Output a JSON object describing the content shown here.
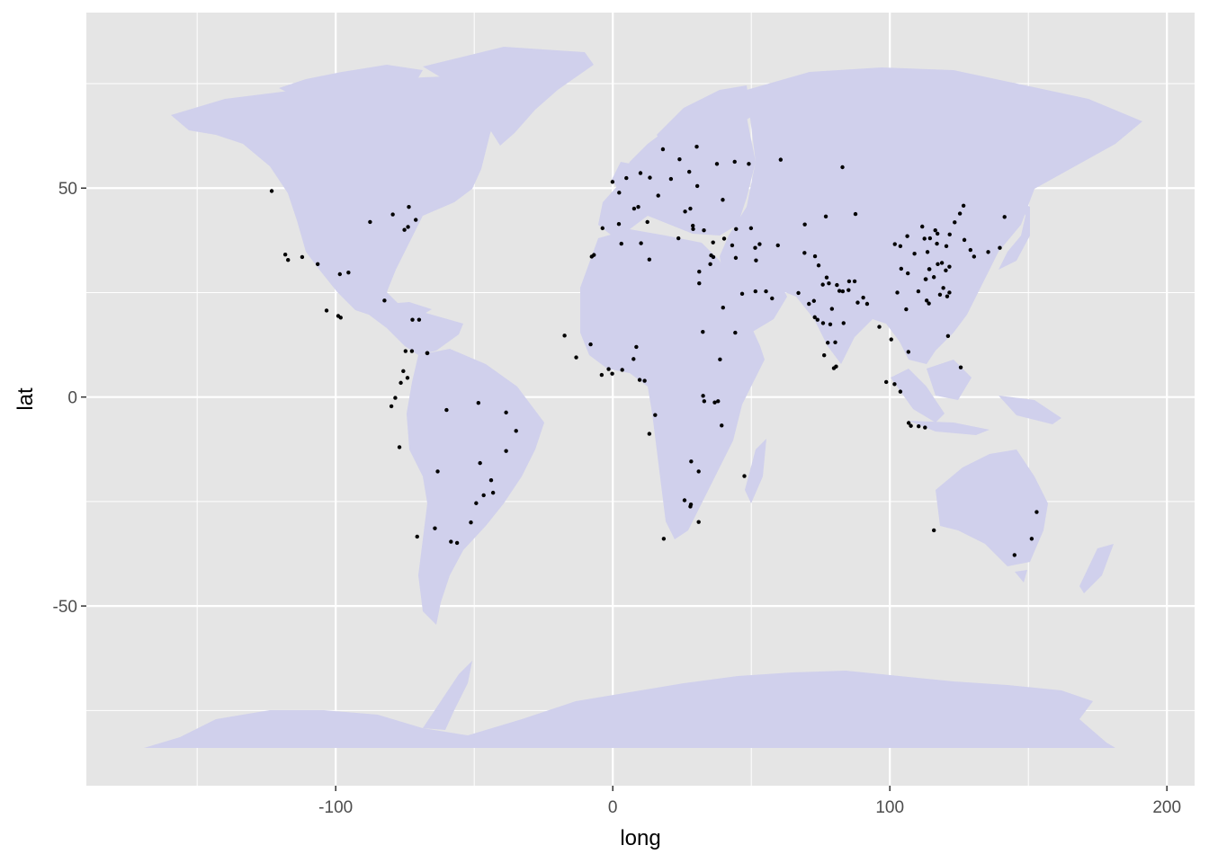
{
  "chart_data": {
    "type": "scatter",
    "xlabel": "long",
    "ylabel": "lat",
    "xlim": [
      -190,
      210
    ],
    "ylim": [
      -93,
      92
    ],
    "x_ticks": [
      -100,
      0,
      100,
      200
    ],
    "y_ticks": [
      -50,
      0,
      50
    ],
    "x_tick_labels": [
      "-100",
      "0",
      "100",
      "200"
    ],
    "y_tick_labels": [
      "-50",
      "0",
      "50"
    ],
    "grid": true,
    "colors": {
      "panel": "#e5e5e5",
      "grid": "#ffffff",
      "land": "#d0d0ec",
      "points": "#000000"
    },
    "points": [
      [
        -123.1,
        49.3
      ],
      [
        -118.2,
        34.1
      ],
      [
        -117.2,
        32.8
      ],
      [
        -112.1,
        33.5
      ],
      [
        -106.5,
        31.8
      ],
      [
        -98.5,
        29.4
      ],
      [
        -95.4,
        29.8
      ],
      [
        -87.6,
        41.9
      ],
      [
        -79.4,
        43.7
      ],
      [
        -73.9,
        40.7
      ],
      [
        -75.2,
        40.0
      ],
      [
        -73.6,
        45.5
      ],
      [
        -71.1,
        42.4
      ],
      [
        -99.1,
        19.4
      ],
      [
        -98.2,
        19.0
      ],
      [
        -103.3,
        20.7
      ],
      [
        -82.4,
        23.1
      ],
      [
        -72.3,
        18.5
      ],
      [
        -69.9,
        18.5
      ],
      [
        -74.8,
        11.0
      ],
      [
        -72.5,
        11.0
      ],
      [
        -67.0,
        10.5
      ],
      [
        -66.9,
        10.5
      ],
      [
        -75.6,
        6.2
      ],
      [
        -74.1,
        4.6
      ],
      [
        -76.5,
        3.4
      ],
      [
        -78.5,
        -0.2
      ],
      [
        -79.9,
        -2.2
      ],
      [
        -77.0,
        -12.0
      ],
      [
        -60.0,
        -3.1
      ],
      [
        -48.5,
        -1.4
      ],
      [
        -38.5,
        -3.7
      ],
      [
        -34.9,
        -8.1
      ],
      [
        -38.5,
        -12.9
      ],
      [
        -47.9,
        -15.8
      ],
      [
        -43.9,
        -19.9
      ],
      [
        -43.2,
        -22.9
      ],
      [
        -46.6,
        -23.5
      ],
      [
        -49.3,
        -25.4
      ],
      [
        -51.2,
        -30.0
      ],
      [
        -63.2,
        -17.8
      ],
      [
        -64.2,
        -31.4
      ],
      [
        -58.4,
        -34.6
      ],
      [
        -56.2,
        -34.9
      ],
      [
        -70.6,
        -33.4
      ],
      [
        -0.1,
        51.5
      ],
      [
        2.3,
        48.9
      ],
      [
        -3.7,
        40.4
      ],
      [
        2.2,
        41.4
      ],
      [
        4.9,
        52.4
      ],
      [
        10.0,
        53.6
      ],
      [
        13.4,
        52.5
      ],
      [
        12.5,
        41.9
      ],
      [
        9.2,
        45.5
      ],
      [
        7.7,
        45.1
      ],
      [
        16.4,
        48.2
      ],
      [
        21.0,
        52.2
      ],
      [
        24.1,
        56.9
      ],
      [
        18.1,
        59.3
      ],
      [
        30.3,
        59.9
      ],
      [
        37.6,
        55.8
      ],
      [
        30.5,
        50.5
      ],
      [
        27.6,
        53.9
      ],
      [
        23.7,
        38.0
      ],
      [
        28.9,
        41.0
      ],
      [
        29.0,
        40.2
      ],
      [
        26.1,
        44.4
      ],
      [
        32.9,
        39.9
      ],
      [
        35.5,
        33.9
      ],
      [
        36.3,
        33.5
      ],
      [
        35.2,
        31.8
      ],
      [
        31.2,
        30.0
      ],
      [
        31.2,
        27.2
      ],
      [
        44.4,
        33.3
      ],
      [
        51.4,
        35.7
      ],
      [
        46.7,
        24.7
      ],
      [
        39.8,
        21.4
      ],
      [
        55.3,
        25.3
      ],
      [
        51.5,
        25.3
      ],
      [
        44.2,
        15.4
      ],
      [
        38.7,
        9.0
      ],
      [
        32.5,
        15.6
      ],
      [
        36.8,
        -1.3
      ],
      [
        39.3,
        -6.8
      ],
      [
        32.6,
        0.3
      ],
      [
        28.3,
        -15.4
      ],
      [
        31.0,
        -17.8
      ],
      [
        28.0,
        -26.2
      ],
      [
        28.2,
        -25.7
      ],
      [
        31.0,
        -29.9
      ],
      [
        18.4,
        -33.9
      ],
      [
        47.5,
        -18.9
      ],
      [
        25.9,
        -24.7
      ],
      [
        -17.4,
        14.7
      ],
      [
        -8.0,
        12.6
      ],
      [
        -13.2,
        9.5
      ],
      [
        -4.0,
        5.3
      ],
      [
        -0.2,
        5.6
      ],
      [
        3.4,
        6.5
      ],
      [
        7.5,
        9.1
      ],
      [
        8.5,
        12.0
      ],
      [
        13.2,
        32.9
      ],
      [
        10.2,
        36.8
      ],
      [
        3.1,
        36.7
      ],
      [
        -7.6,
        33.6
      ],
      [
        -6.8,
        34.0
      ],
      [
        15.3,
        -4.3
      ],
      [
        13.2,
        -8.8
      ],
      [
        9.7,
        4.1
      ],
      [
        11.5,
        3.9
      ],
      [
        -1.5,
        6.7
      ],
      [
        38.0,
        -1.0
      ],
      [
        33.0,
        -1.0
      ],
      [
        69.2,
        34.5
      ],
      [
        67.0,
        24.9
      ],
      [
        74.3,
        31.5
      ],
      [
        77.2,
        28.6
      ],
      [
        72.9,
        19.1
      ],
      [
        80.3,
        13.1
      ],
      [
        77.6,
        13.0
      ],
      [
        78.5,
        17.4
      ],
      [
        88.4,
        22.6
      ],
      [
        85.1,
        25.6
      ],
      [
        75.8,
        26.9
      ],
      [
        73.0,
        33.7
      ],
      [
        90.4,
        23.8
      ],
      [
        91.8,
        22.3
      ],
      [
        96.2,
        16.8
      ],
      [
        100.5,
        13.8
      ],
      [
        106.7,
        10.8
      ],
      [
        105.9,
        21.0
      ],
      [
        101.7,
        3.1
      ],
      [
        103.8,
        1.3
      ],
      [
        106.8,
        -6.2
      ],
      [
        107.6,
        -6.9
      ],
      [
        112.7,
        -7.3
      ],
      [
        110.4,
        -7.0
      ],
      [
        98.7,
        3.6
      ],
      [
        116.4,
        39.9
      ],
      [
        121.5,
        31.2
      ],
      [
        113.3,
        23.1
      ],
      [
        114.1,
        22.4
      ],
      [
        104.1,
        30.7
      ],
      [
        106.5,
        29.6
      ],
      [
        108.9,
        34.3
      ],
      [
        117.2,
        39.1
      ],
      [
        118.8,
        32.1
      ],
      [
        120.2,
        30.3
      ],
      [
        114.3,
        30.6
      ],
      [
        123.4,
        41.8
      ],
      [
        126.6,
        45.8
      ],
      [
        125.3,
        43.9
      ],
      [
        113.6,
        34.7
      ],
      [
        112.9,
        28.2
      ],
      [
        117.0,
        36.7
      ],
      [
        120.4,
        36.1
      ],
      [
        121.6,
        38.9
      ],
      [
        126.9,
        37.6
      ],
      [
        129.1,
        35.2
      ],
      [
        139.7,
        35.7
      ],
      [
        135.5,
        34.7
      ],
      [
        130.4,
        33.6
      ],
      [
        141.4,
        43.1
      ],
      [
        121.0,
        14.6
      ],
      [
        125.6,
        7.1
      ],
      [
        115.9,
        -31.9
      ],
      [
        151.2,
        -33.9
      ],
      [
        153.0,
        -27.5
      ],
      [
        145.0,
        -37.8
      ],
      [
        69.3,
        41.3
      ],
      [
        76.9,
        43.2
      ],
      [
        87.6,
        43.8
      ],
      [
        60.6,
        56.8
      ],
      [
        82.9,
        55.0
      ],
      [
        44.0,
        56.3
      ],
      [
        49.1,
        55.8
      ],
      [
        39.7,
        47.2
      ],
      [
        28.0,
        45.1
      ],
      [
        49.9,
        40.4
      ],
      [
        44.5,
        40.2
      ],
      [
        51.7,
        32.7
      ],
      [
        59.6,
        36.3
      ],
      [
        53.0,
        36.6
      ],
      [
        40.2,
        37.9
      ],
      [
        36.2,
        37.0
      ],
      [
        43.1,
        36.3
      ],
      [
        57.5,
        23.6
      ],
      [
        114.2,
        30.6
      ],
      [
        110.3,
        25.3
      ],
      [
        102.7,
        25.0
      ],
      [
        119.3,
        26.1
      ],
      [
        118.1,
        24.5
      ],
      [
        120.7,
        24.1
      ],
      [
        121.5,
        25.0
      ],
      [
        115.9,
        28.7
      ],
      [
        117.3,
        31.8
      ],
      [
        113.0,
        28.2
      ],
      [
        111.7,
        40.8
      ],
      [
        112.5,
        37.9
      ],
      [
        114.5,
        38.0
      ],
      [
        103.8,
        36.1
      ],
      [
        101.8,
        36.6
      ],
      [
        106.3,
        38.5
      ],
      [
        87.3,
        27.7
      ],
      [
        85.3,
        27.7
      ],
      [
        83.0,
        25.3
      ],
      [
        80.9,
        26.8
      ],
      [
        81.8,
        25.4
      ],
      [
        78.0,
        27.2
      ],
      [
        75.9,
        17.7
      ],
      [
        73.9,
        18.5
      ],
      [
        72.6,
        23.0
      ],
      [
        70.8,
        22.3
      ],
      [
        79.1,
        21.1
      ],
      [
        83.3,
        17.7
      ],
      [
        76.3,
        10.0
      ],
      [
        79.8,
        6.9
      ],
      [
        80.6,
        7.3
      ]
    ]
  }
}
